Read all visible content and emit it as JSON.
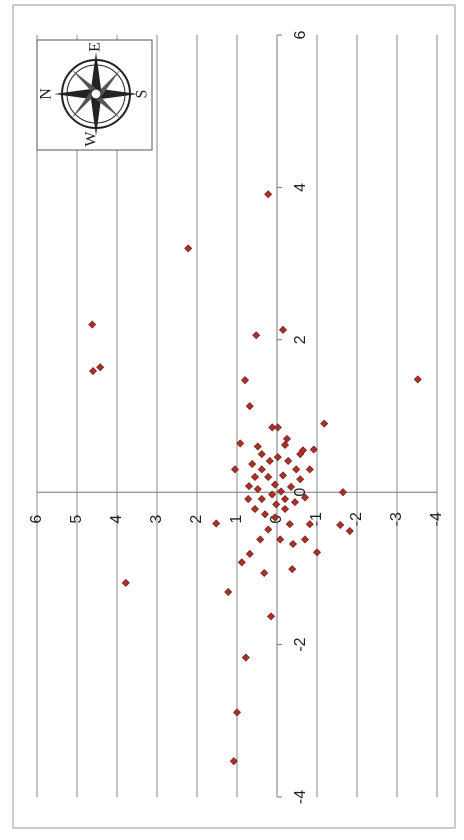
{
  "chart_data": {
    "type": "scatter",
    "x": [
      3.91,
      3.2,
      2.2,
      1.64,
      1.59,
      2.13,
      2.06,
      1.48,
      1.47,
      1.13,
      0.85,
      0.85,
      0.9,
      0.64,
      0.6,
      0.62,
      0.55,
      0.56,
      0.3,
      0,
      -0.41,
      -1.19,
      -0.43,
      -0.51,
      -0.79,
      -0.92,
      -1.31,
      -1.06,
      -1.01,
      -1.63,
      -2.17,
      -2.89,
      -3.53,
      0.08,
      0.2,
      0.3,
      0.41,
      0.46,
      0.41,
      0.3,
      0.17,
      0.07,
      0.01,
      -0.03,
      -0.09,
      -0.22,
      -0.29,
      -0.33,
      -0.22,
      -0.13,
      -0.07,
      0.22,
      0.2,
      0.04,
      -0.09,
      -0.49,
      -0.62,
      -0.68,
      -0.62,
      -0.42,
      -0.16,
      -0.42,
      -0.62,
      -0.81,
      0.5,
      0.7,
      0.3,
      0.5,
      0.37,
      0.1,
      -0.09
    ],
    "values": [
      0.22,
      2.22,
      4.62,
      4.42,
      4.6,
      -0.15,
      0.52,
      -3.52,
      0.8,
      0.68,
      0.12,
      -0.02,
      -1.18,
      0.92,
      0.48,
      -0.2,
      -0.65,
      -0.92,
      1.05,
      -1.65,
      1.52,
      3.78,
      -1.58,
      -1.82,
      -1.0,
      0.88,
      1.22,
      0.32,
      -0.38,
      0.15,
      0.78,
      1.0,
      1.08,
      0.7,
      0.55,
      0.38,
      0.18,
      -0.02,
      -0.28,
      -0.48,
      -0.58,
      -0.35,
      -0.1,
      0.12,
      0.38,
      0.55,
      0.3,
      0.05,
      -0.2,
      -0.45,
      -0.7,
      -0.15,
      0.22,
      0.48,
      0.72,
      0.22,
      -0.08,
      -0.4,
      -0.7,
      -0.82,
      0.02,
      -0.32,
      0.42,
      0.68,
      -0.58,
      -0.25,
      -0.82,
      0.38,
      0.62,
      0.05,
      -0.2
    ],
    "color": "#a8322a",
    "xlim": [
      -4,
      6
    ],
    "ylim": [
      -4,
      6
    ],
    "xticks": [
      -4,
      -2,
      0,
      2,
      4,
      6
    ],
    "yticks": [
      -4,
      -3,
      -2,
      -1,
      0,
      1,
      2,
      3,
      4,
      5,
      6
    ],
    "grid": true
  },
  "compass": {
    "labels": [
      "N",
      "E",
      "S",
      "W"
    ]
  }
}
